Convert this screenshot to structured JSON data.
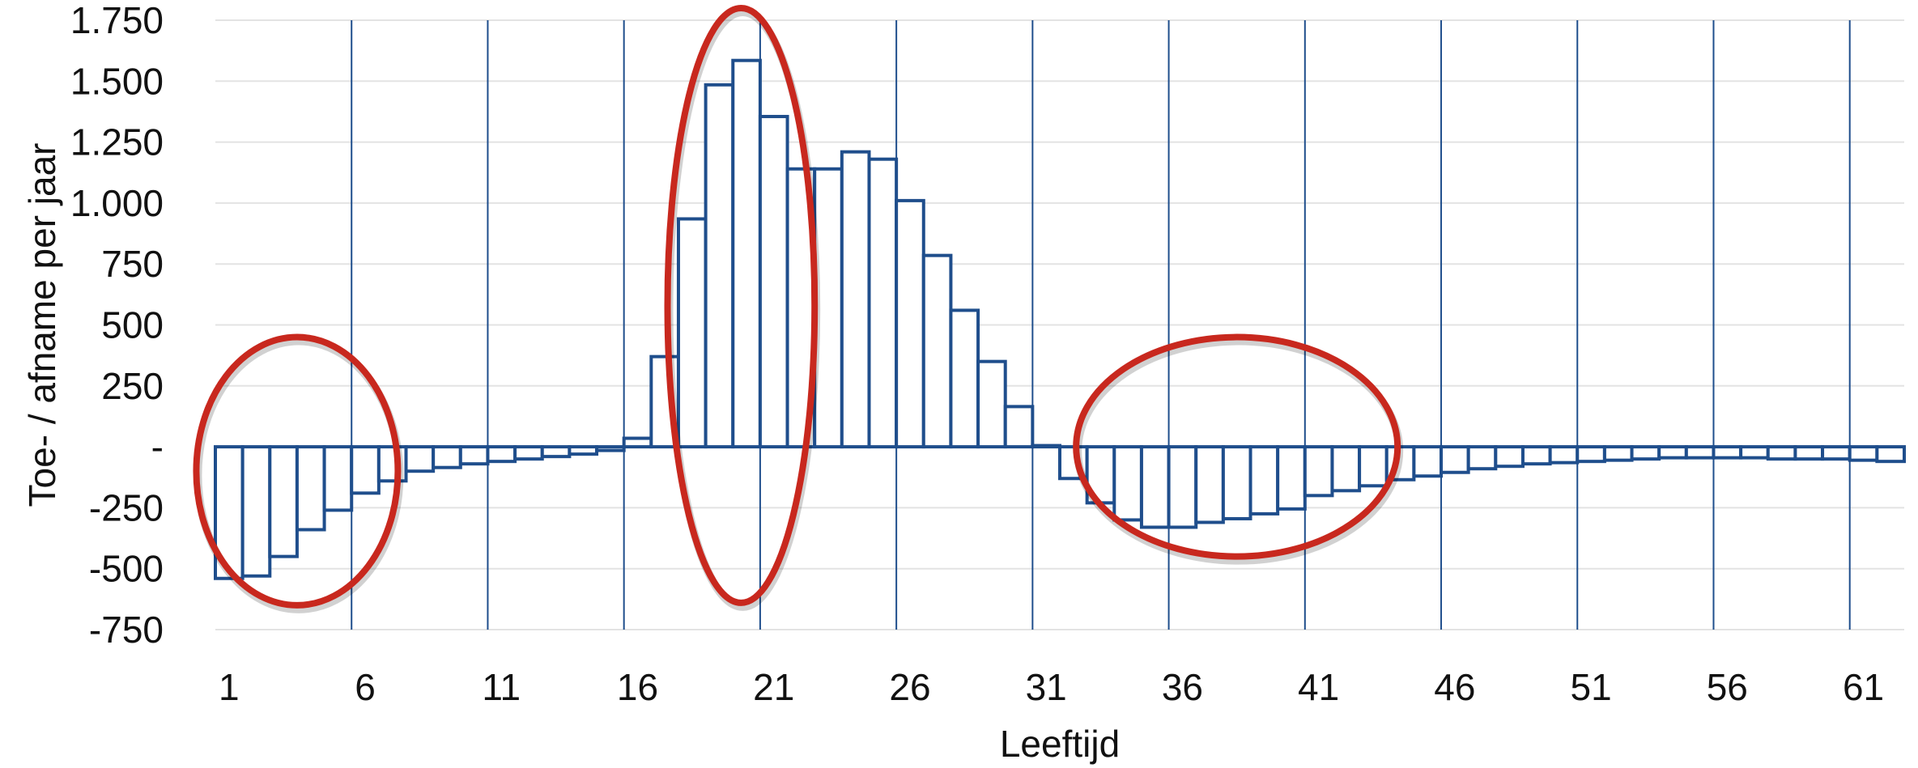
{
  "chart_data": {
    "type": "bar",
    "title": "",
    "xlabel": "Leeftijd",
    "ylabel": "Toe- / afname per jaar",
    "ylim": [
      -750,
      1750
    ],
    "yticks": [
      1750,
      1500,
      1250,
      1000,
      750,
      500,
      250,
      0,
      -250,
      -500,
      -750
    ],
    "ytick_labels": [
      "1.750",
      "1.500",
      "1.250",
      "1.000",
      "750",
      "500",
      "250",
      "-",
      "-250",
      "-500",
      "-750"
    ],
    "xtick_labels": [
      "1",
      "6",
      "11",
      "16",
      "21",
      "26",
      "31",
      "36",
      "41",
      "46",
      "51",
      "56",
      "61"
    ],
    "x": [
      1,
      2,
      3,
      4,
      5,
      6,
      7,
      8,
      9,
      10,
      11,
      12,
      13,
      14,
      15,
      16,
      17,
      18,
      19,
      20,
      21,
      22,
      23,
      24,
      25,
      26,
      27,
      28,
      29,
      30,
      31,
      32,
      33,
      34,
      35,
      36,
      37,
      38,
      39,
      40,
      41,
      42,
      43,
      44,
      45,
      46,
      47,
      48,
      49,
      50,
      51,
      52,
      53,
      54,
      55,
      56,
      57,
      58,
      59,
      60,
      61,
      62
    ],
    "values": [
      -540,
      -530,
      -450,
      -340,
      -260,
      -190,
      -140,
      -100,
      -85,
      -70,
      -60,
      -50,
      -40,
      -30,
      -15,
      35,
      370,
      935,
      1485,
      1585,
      1355,
      1140,
      1140,
      1210,
      1180,
      1010,
      785,
      560,
      350,
      165,
      5,
      -130,
      -230,
      -300,
      -330,
      -330,
      -310,
      -295,
      -275,
      -255,
      -200,
      -180,
      -160,
      -135,
      -120,
      -105,
      -90,
      -80,
      -70,
      -65,
      -60,
      -55,
      -50,
      -45,
      -45,
      -45,
      -45,
      -50,
      -50,
      -50,
      -55,
      -60
    ],
    "bar_color": "#1f4e8c",
    "vertical_gridlines_at": [
      6,
      11,
      16,
      21,
      26,
      31,
      36,
      41,
      46,
      51,
      56,
      61
    ],
    "grid": true,
    "highlight_color": "#c8281e",
    "highlights": [
      {
        "x_center": 3.5,
        "y_center": -100,
        "x_radius": 3.7,
        "y_radius": 550
      },
      {
        "x_center": 19.8,
        "y_center": 580,
        "x_radius": 2.7,
        "y_radius": 1220
      },
      {
        "x_center": 38,
        "y_center": 0,
        "x_radius": 5.9,
        "y_radius": 450
      }
    ]
  }
}
